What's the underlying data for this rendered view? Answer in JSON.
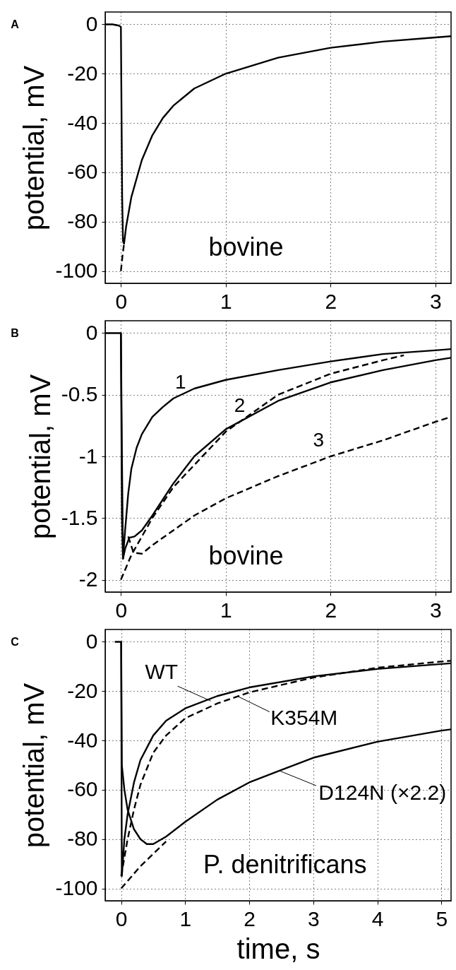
{
  "chart_data": [
    {
      "type": "line",
      "title": "A",
      "ylabel": "potential, mV",
      "xlim": [
        -0.15,
        3.15
      ],
      "ylim": [
        -105,
        5
      ],
      "xticks": [
        0,
        1,
        2,
        3
      ],
      "yticks": [
        0,
        -20,
        -40,
        -60,
        -80,
        -100
      ],
      "grid": true,
      "annotations": [
        "bovine"
      ],
      "series": [
        {
          "color": "#000000",
          "line_style": "solid",
          "x": [
            -0.15,
            -0.08,
            -0.02,
            0.0,
            0.005,
            0.012,
            0.02,
            0.03,
            0.05,
            0.1,
            0.2,
            0.3,
            0.4,
            0.5,
            0.7,
            1.0,
            1.5,
            2.0,
            2.5,
            3.0,
            3.15
          ],
          "values": [
            0,
            0,
            -0.5,
            -1,
            -30,
            -70,
            -88,
            -89,
            -82,
            -70,
            -55,
            -45,
            -38,
            -33,
            -26,
            -20,
            -13.5,
            -9.5,
            -7,
            -5.3,
            -4.8
          ]
        },
        {
          "color": "#000000",
          "line_style": "dashed",
          "x": [
            0.0,
            0.015,
            0.03
          ],
          "values": [
            -100,
            -94,
            -89
          ]
        }
      ]
    },
    {
      "type": "line",
      "title": "B",
      "ylabel": "potential, mV",
      "xlim": [
        -0.15,
        3.15
      ],
      "ylim": [
        -2.1,
        0.1
      ],
      "xticks": [
        0,
        1,
        2,
        3
      ],
      "yticks": [
        0,
        -0.5,
        -1,
        -1.5,
        -2
      ],
      "grid": true,
      "annotations": [
        "1",
        "2",
        "3",
        "bovine"
      ],
      "series": [
        {
          "color": "#000000",
          "line_style": "solid",
          "x": [
            -0.15,
            -0.05,
            0.0,
            0.01,
            0.02,
            0.04,
            0.07,
            0.1,
            0.15,
            0.2,
            0.3,
            0.4,
            0.5,
            0.7,
            1.0,
            1.5,
            2.0,
            2.5,
            3.0,
            3.15
          ],
          "values": [
            0,
            0,
            0,
            -1.0,
            -1.83,
            -1.6,
            -1.3,
            -1.1,
            -0.93,
            -0.82,
            -0.68,
            -0.6,
            -0.53,
            -0.45,
            -0.38,
            -0.3,
            -0.23,
            -0.17,
            -0.14,
            -0.13
          ]
        },
        {
          "color": "#000000",
          "line_style": "solid",
          "x": [
            0.0,
            0.01,
            0.02,
            0.04,
            0.08,
            0.13,
            0.2,
            0.3,
            0.5,
            0.7,
            1.0,
            1.5,
            2.0,
            2.5,
            3.0,
            3.15
          ],
          "values": [
            0,
            -1.5,
            -1.83,
            -1.75,
            -1.66,
            -1.65,
            -1.6,
            -1.48,
            -1.22,
            -1.0,
            -0.78,
            -0.55,
            -0.4,
            -0.3,
            -0.22,
            -0.2
          ]
        },
        {
          "color": "#000000",
          "line_style": "dashed",
          "x": [
            0.07,
            0.12,
            0.2,
            0.3,
            0.5,
            0.7,
            1.0,
            1.5,
            2.0,
            2.5,
            3.0,
            3.15
          ],
          "values": [
            -1.65,
            -1.78,
            -1.79,
            -1.72,
            -1.6,
            -1.48,
            -1.34,
            -1.16,
            -1.0,
            -0.87,
            -0.72,
            -0.68
          ]
        },
        {
          "color": "#000000",
          "line_style": "dashed",
          "x": [
            0.0,
            0.1,
            0.3,
            0.5,
            1.0,
            1.5,
            2.0,
            2.5,
            2.7
          ],
          "values": [
            -2.0,
            -1.8,
            -1.5,
            -1.25,
            -0.8,
            -0.5,
            -0.33,
            -0.22,
            -0.18
          ]
        }
      ]
    },
    {
      "type": "line",
      "title": "C",
      "xlabel": "time, s",
      "ylabel": "potential, mV",
      "xlim": [
        -0.25,
        5.15
      ],
      "ylim": [
        -105,
        5
      ],
      "xticks": [
        0,
        1,
        2,
        3,
        4,
        5
      ],
      "yticks": [
        0,
        -20,
        -40,
        -60,
        -80,
        -100
      ],
      "grid": true,
      "annotations": [
        {
          "text": "WT",
          "x": 1.4,
          "y": -24
        },
        {
          "text": "K354M",
          "x": 1.82,
          "y": -22.1
        },
        {
          "text": "D124N (×2.2)",
          "x": 2.47,
          "y": -52.3
        },
        "P. denitrificans"
      ],
      "series": [
        {
          "color": "#000000",
          "line_style": "solid",
          "x": [
            -0.1,
            0.0,
            0.01,
            0.05,
            0.1,
            0.2,
            0.3,
            0.5,
            0.7,
            1.0,
            1.5,
            2.0,
            3.0,
            4.0,
            5.0,
            5.15
          ],
          "values": [
            0,
            0,
            -95,
            -80,
            -70,
            -57,
            -48,
            -38,
            -32,
            -27,
            -22,
            -18.5,
            -14,
            -11,
            -9,
            -8.7
          ]
        },
        {
          "color": "#000000",
          "line_style": "dashed",
          "x": [
            0.0,
            0.1,
            0.2,
            0.3,
            0.5,
            0.7,
            1.0,
            1.5,
            2.0,
            3.0,
            4.0,
            5.0,
            5.15
          ],
          "values": [
            -95,
            -80,
            -68,
            -58,
            -45,
            -38,
            -31,
            -25,
            -20.5,
            -14.5,
            -10.5,
            -8,
            -7.7
          ]
        },
        {
          "color": "#000000",
          "line_style": "solid",
          "x": [
            0.0,
            0.01,
            0.05,
            0.1,
            0.2,
            0.3,
            0.4,
            0.5,
            0.7,
            1.0,
            1.5,
            2.0,
            2.5,
            3.0,
            4.0,
            5.0,
            5.15
          ],
          "values": [
            0,
            -50,
            -60,
            -68,
            -76,
            -80,
            -82,
            -82,
            -79,
            -73,
            -64,
            -57,
            -52,
            -47,
            -40.5,
            -36,
            -35.5
          ]
        },
        {
          "color": "#000000",
          "line_style": "dashed",
          "x": [
            0.0,
            0.3,
            0.5,
            0.7
          ],
          "values": [
            -100,
            -91,
            -86,
            -81
          ]
        }
      ]
    }
  ]
}
